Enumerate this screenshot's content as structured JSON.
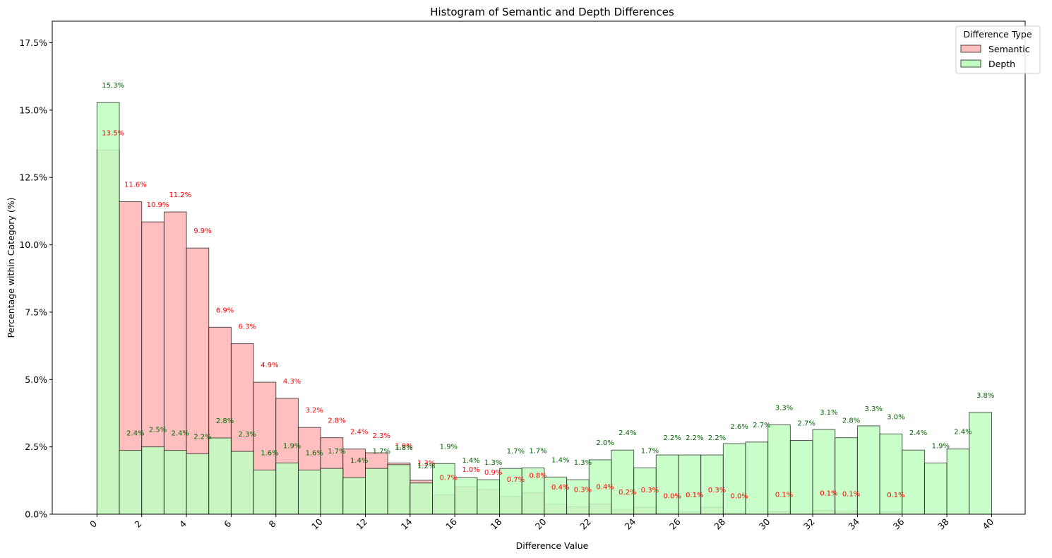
{
  "chart_data": {
    "type": "bar",
    "title": "Histogram of Semantic and Depth Differences",
    "xlabel": "Difference Value",
    "ylabel": "Percentage within Category (%)",
    "xlim": [
      -2,
      41.5
    ],
    "ylim": [
      0,
      18.3
    ],
    "x_ticks": [
      0,
      2,
      4,
      6,
      8,
      10,
      12,
      14,
      16,
      18,
      20,
      22,
      24,
      26,
      28,
      30,
      32,
      34,
      36,
      38,
      40
    ],
    "y_ticks": [
      0,
      2.5,
      5.0,
      7.5,
      10.0,
      12.5,
      15.0,
      17.5
    ],
    "y_tick_labels": [
      "0.0%",
      "2.5%",
      "5.0%",
      "7.5%",
      "10.0%",
      "12.5%",
      "15.0%",
      "17.5%"
    ],
    "bin_starts": [
      0,
      1,
      2,
      3,
      4,
      5,
      6,
      7,
      8,
      9,
      10,
      11,
      12,
      13,
      14,
      15,
      16,
      17,
      18,
      19,
      20,
      21,
      22,
      23,
      24,
      25,
      26,
      27,
      28,
      29,
      30,
      31,
      32,
      33,
      34,
      35,
      36,
      37,
      38,
      39
    ],
    "bin_width": 1,
    "grid": false,
    "legend": {
      "title": "Difference Type",
      "placement": "top-right"
    },
    "series": [
      {
        "name": "Semantic",
        "color": "#ffbfbf",
        "label_color": "#ff0000",
        "values": [
          13.52,
          11.6,
          10.85,
          11.22,
          9.88,
          6.94,
          6.33,
          4.9,
          4.3,
          3.22,
          2.84,
          2.42,
          2.28,
          1.9,
          1.26,
          0.72,
          1.02,
          0.92,
          0.66,
          0.8,
          0.37,
          0.27,
          0.38,
          0.18,
          0.26,
          0.04,
          0.08,
          0.26,
          0.04,
          0.0,
          0.09,
          0.0,
          0.14,
          0.12,
          0.0,
          0.08,
          0.0,
          0.0,
          0.0,
          0.0
        ],
        "labels": [
          "13.5%",
          "11.6%",
          "10.9%",
          "11.2%",
          "9.9%",
          "6.9%",
          "6.3%",
          "4.9%",
          "4.3%",
          "3.2%",
          "2.8%",
          "2.4%",
          "2.3%",
          "1.9%",
          "1.3%",
          "0.7%",
          "1.0%",
          "0.9%",
          "0.7%",
          "0.8%",
          "0.4%",
          "0.3%",
          "0.4%",
          "0.2%",
          "0.3%",
          "0.0%",
          "0.1%",
          "0.3%",
          "0.0%",
          "",
          "0.1%",
          "",
          "0.1%",
          "0.1%",
          "",
          "0.1%",
          "",
          "",
          "",
          ""
        ]
      },
      {
        "name": "Depth",
        "color": "#bfffbf",
        "label_color": "#006400",
        "values": [
          15.28,
          2.37,
          2.5,
          2.37,
          2.24,
          2.83,
          2.33,
          1.64,
          1.9,
          1.64,
          1.7,
          1.36,
          1.7,
          1.84,
          1.16,
          1.88,
          1.36,
          1.28,
          1.7,
          1.72,
          1.38,
          1.28,
          2.02,
          2.38,
          1.72,
          2.2,
          2.2,
          2.2,
          2.62,
          2.68,
          3.32,
          2.74,
          3.14,
          2.84,
          3.28,
          2.98,
          2.38,
          1.9,
          2.42,
          3.78
        ],
        "labels": [
          "15.3%",
          "2.4%",
          "2.5%",
          "2.4%",
          "2.2%",
          "2.8%",
          "2.3%",
          "1.6%",
          "1.9%",
          "1.6%",
          "1.7%",
          "1.4%",
          "1.7%",
          "1.8%",
          "1.2%",
          "1.9%",
          "1.4%",
          "1.3%",
          "1.7%",
          "1.7%",
          "1.4%",
          "1.3%",
          "2.0%",
          "2.4%",
          "1.7%",
          "2.2%",
          "2.2%",
          "2.2%",
          "2.6%",
          "2.7%",
          "3.3%",
          "2.7%",
          "3.1%",
          "2.8%",
          "3.3%",
          "3.0%",
          "2.4%",
          "1.9%",
          "2.4%",
          "3.8%"
        ]
      }
    ]
  }
}
